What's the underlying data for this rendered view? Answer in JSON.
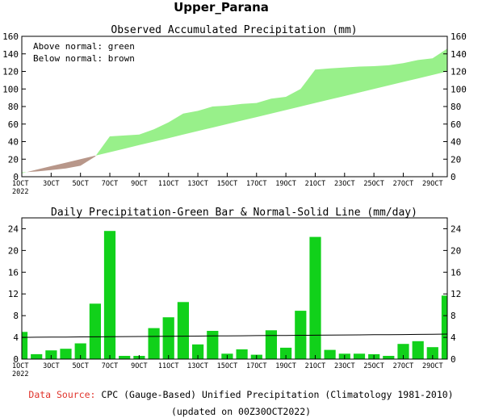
{
  "page_title": "Upper_Parana",
  "footer": {
    "source_label": "Data Source:",
    "source_text": " CPC (Gauge-Based) Unified Precipitation (Climatology 1981-2010)",
    "updated": "(updated on 00Z30OCT2022)"
  },
  "colors": {
    "above": "#98f08a",
    "below": "#b8978a",
    "bar": "#11d11a",
    "line": "#000000",
    "source_label": "#e0332b"
  },
  "chart_data": [
    {
      "type": "area",
      "title": "Observed Accumulated Precipitation (mm)",
      "legend": [
        "Above normal: green",
        "Below normal: brown"
      ],
      "legend_position": "top-left",
      "ylim": [
        0,
        160
      ],
      "yticks": [
        0,
        20,
        40,
        60,
        80,
        100,
        120,
        140,
        160
      ],
      "xlim": [
        1,
        30
      ],
      "xticks": [
        {
          "x": 1,
          "label": "1OCT"
        },
        {
          "x": 3,
          "label": "3OCT"
        },
        {
          "x": 5,
          "label": "5OCT"
        },
        {
          "x": 7,
          "label": "7OCT"
        },
        {
          "x": 9,
          "label": "9OCT"
        },
        {
          "x": 11,
          "label": "11OCT"
        },
        {
          "x": 13,
          "label": "13OCT"
        },
        {
          "x": 15,
          "label": "15OCT"
        },
        {
          "x": 17,
          "label": "17OCT"
        },
        {
          "x": 19,
          "label": "19OCT"
        },
        {
          "x": 21,
          "label": "21OCT"
        },
        {
          "x": 23,
          "label": "23OCT"
        },
        {
          "x": 25,
          "label": "25OCT"
        },
        {
          "x": 27,
          "label": "27OCT"
        },
        {
          "x": 29,
          "label": "29OCT"
        }
      ],
      "year_label": "2022",
      "days": [
        1,
        2,
        3,
        4,
        5,
        6,
        7,
        8,
        9,
        10,
        11,
        12,
        13,
        14,
        15,
        16,
        17,
        18,
        19,
        20,
        21,
        22,
        23,
        24,
        25,
        26,
        27,
        28,
        29,
        30
      ],
      "observed": [
        5,
        6,
        7.5,
        9.5,
        12.5,
        23,
        46,
        47,
        48,
        54,
        62,
        72,
        75,
        80,
        81,
        83,
        84,
        89,
        91,
        100,
        122,
        123.5,
        124.5,
        125.5,
        126,
        127,
        129.5,
        133,
        135,
        146
      ],
      "normal": [
        4,
        8,
        12,
        16,
        20,
        24,
        28,
        32,
        36,
        40,
        44,
        48,
        52,
        56,
        60,
        64,
        68,
        72,
        76,
        80,
        84,
        88,
        92,
        96,
        100,
        104,
        108,
        112,
        116,
        120
      ]
    },
    {
      "type": "bar",
      "title": "Daily Precipitation-Green Bar & Normal-Solid Line (mm/day)",
      "ylim": [
        0,
        26
      ],
      "yticks": [
        0,
        4,
        8,
        12,
        16,
        20,
        24
      ],
      "xlim": [
        1,
        30
      ],
      "xticks": [
        {
          "x": 1,
          "label": "1OCT"
        },
        {
          "x": 3,
          "label": "3OCT"
        },
        {
          "x": 5,
          "label": "5OCT"
        },
        {
          "x": 7,
          "label": "7OCT"
        },
        {
          "x": 9,
          "label": "9OCT"
        },
        {
          "x": 11,
          "label": "11OCT"
        },
        {
          "x": 13,
          "label": "13OCT"
        },
        {
          "x": 15,
          "label": "15OCT"
        },
        {
          "x": 17,
          "label": "17OCT"
        },
        {
          "x": 19,
          "label": "19OCT"
        },
        {
          "x": 21,
          "label": "21OCT"
        },
        {
          "x": 23,
          "label": "23OCT"
        },
        {
          "x": 25,
          "label": "25OCT"
        },
        {
          "x": 27,
          "label": "27OCT"
        },
        {
          "x": 29,
          "label": "29OCT"
        }
      ],
      "year_label": "2022",
      "days": [
        1,
        2,
        3,
        4,
        5,
        6,
        7,
        8,
        9,
        10,
        11,
        12,
        13,
        14,
        15,
        16,
        17,
        18,
        19,
        20,
        21,
        22,
        23,
        24,
        25,
        26,
        27,
        28,
        29,
        30
      ],
      "values": [
        5,
        0.9,
        1.6,
        1.9,
        2.9,
        10.2,
        23.6,
        0.6,
        0.6,
        5.7,
        7.7,
        10.5,
        2.7,
        5.2,
        1.0,
        1.8,
        0.8,
        5.3,
        2.1,
        8.9,
        22.5,
        1.7,
        1.0,
        1.0,
        0.9,
        0.6,
        2.8,
        3.3,
        2.2,
        11.7
      ],
      "normal": [
        4.0,
        4.02,
        4.04,
        4.06,
        4.08,
        4.1,
        4.12,
        4.14,
        4.16,
        4.18,
        4.2,
        4.22,
        4.24,
        4.26,
        4.28,
        4.3,
        4.32,
        4.34,
        4.36,
        4.38,
        4.4,
        4.42,
        4.44,
        4.46,
        4.48,
        4.5,
        4.52,
        4.54,
        4.56,
        4.6
      ]
    }
  ]
}
